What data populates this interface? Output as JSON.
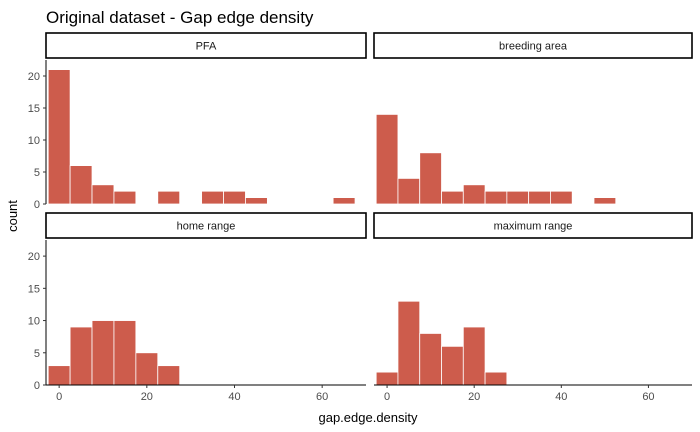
{
  "chart_data": {
    "type": "bar",
    "title": "Original dataset - Gap edge density",
    "xlabel": "gap.edge.density",
    "ylabel": "count",
    "xlim": [
      -3,
      70
    ],
    "ylim": [
      0,
      22.5
    ],
    "x_ticks": [
      0,
      20,
      40,
      60
    ],
    "y_ticks": [
      0,
      5,
      10,
      15,
      20
    ],
    "bin_width": 5,
    "bin_centers": [
      0,
      5,
      10,
      15,
      20,
      25,
      30,
      35,
      40,
      45,
      50,
      55,
      60,
      65
    ],
    "bar_color": "#CD5C4C",
    "grid": false,
    "legend": "none",
    "facets": [
      {
        "name": "PFA",
        "values": [
          21,
          6,
          3,
          2,
          0,
          2,
          0,
          2,
          2,
          1,
          0,
          0,
          0,
          1
        ]
      },
      {
        "name": "breeding area",
        "values": [
          14,
          4,
          8,
          2,
          3,
          2,
          2,
          2,
          2,
          0,
          1,
          0,
          0,
          0
        ]
      },
      {
        "name": "home range",
        "values": [
          3,
          9,
          10,
          10,
          5,
          3,
          0,
          0,
          0,
          0,
          0,
          0,
          0,
          0
        ]
      },
      {
        "name": "maximum range",
        "values": [
          2,
          13,
          8,
          6,
          9,
          2,
          0,
          0,
          0,
          0,
          0,
          0,
          0,
          0
        ]
      }
    ]
  }
}
